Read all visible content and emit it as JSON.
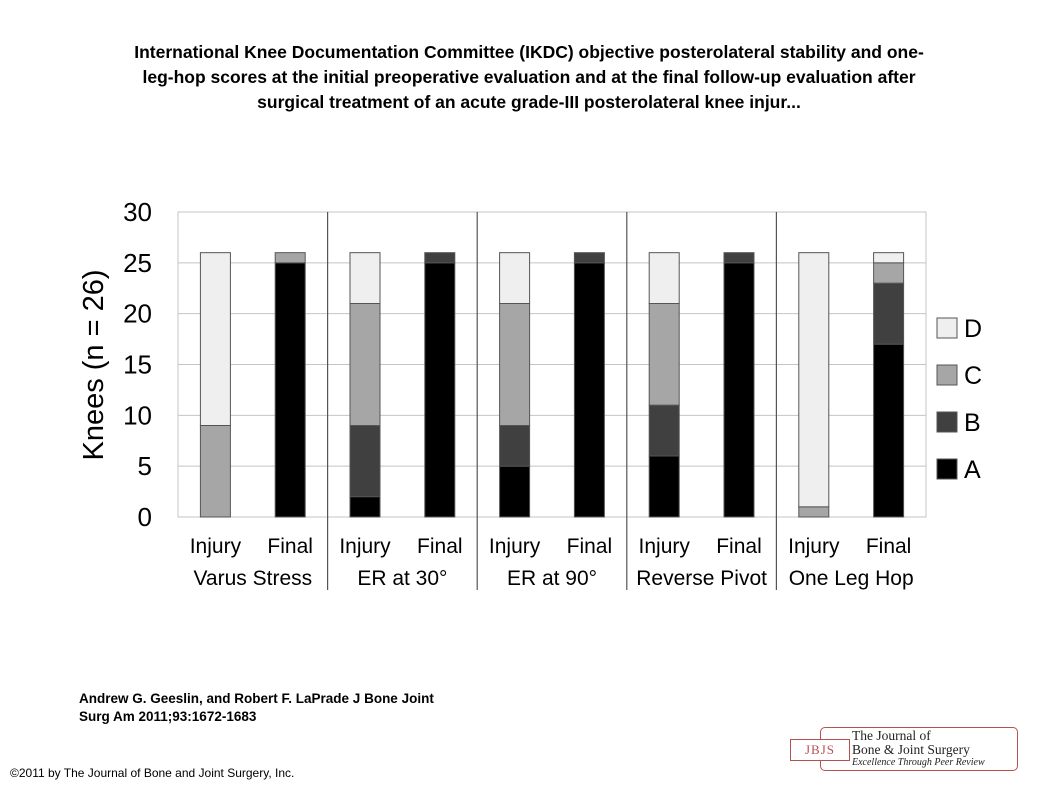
{
  "title_lines": [
    "International Knee Documentation Committee (IKDC) objective posterolateral stability and one-",
    "leg-hop scores at the initial preoperative evaluation and at the final follow-up evaluation after",
    "surgical treatment of an acute grade-III posterolateral knee injur..."
  ],
  "citation_lines": [
    "Andrew G. Geeslin, and Robert F. LaPrade J Bone Joint",
    "Surg Am 2011;93:1672-1683"
  ],
  "copyright": "©2011 by The Journal of Bone and Joint Surgery, Inc.",
  "logo": {
    "abbr": "JBJS",
    "line1": "The Journal of",
    "line2": "Bone & Joint Surgery",
    "line3": "Excellence Through Peer Review"
  },
  "chart_data": {
    "type": "bar",
    "stacked": true,
    "ylabel": "Knees (n = 26)",
    "ylim": [
      0,
      30
    ],
    "yticks": [
      0,
      5,
      10,
      15,
      20,
      25,
      30
    ],
    "grid": true,
    "legend_position": "right",
    "groups": [
      "Varus Stress",
      "ER at 30°",
      "ER at 90°",
      "Reverse Pivot",
      "One Leg Hop"
    ],
    "categories": [
      "Injury",
      "Final",
      "Injury",
      "Final",
      "Injury",
      "Final",
      "Injury",
      "Final",
      "Injury",
      "Final"
    ],
    "series": [
      {
        "name": "A",
        "color": "#000000",
        "values": [
          0,
          25,
          2,
          25,
          5,
          25,
          6,
          25,
          0,
          17
        ]
      },
      {
        "name": "B",
        "color": "#404040",
        "values": [
          0,
          0,
          7,
          1,
          4,
          1,
          5,
          1,
          0,
          6
        ]
      },
      {
        "name": "C",
        "color": "#a6a6a6",
        "values": [
          9,
          1,
          12,
          0,
          12,
          0,
          10,
          0,
          1,
          2
        ]
      },
      {
        "name": "D",
        "color": "#efefef",
        "values": [
          17,
          0,
          5,
          0,
          5,
          0,
          5,
          0,
          25,
          1
        ]
      }
    ],
    "legend_order": [
      "D",
      "C",
      "B",
      "A"
    ]
  }
}
